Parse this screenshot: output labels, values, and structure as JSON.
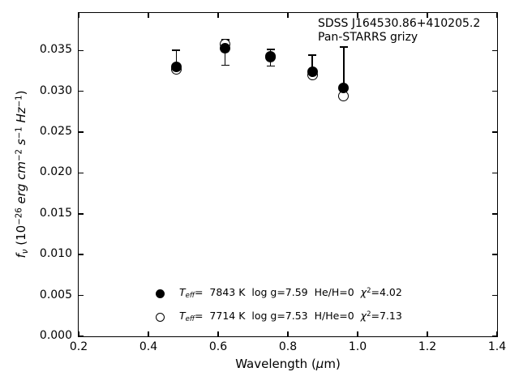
{
  "figure": {
    "background": "#ffffff",
    "foreground": "#000000",
    "xlabel_parts": {
      "pre": "Wavelength (",
      "mu": "μ",
      "post": "m)"
    },
    "ylabel_parts": {
      "f": "f",
      "nu": "ν",
      "p1": " (10",
      "s1": "−26",
      "p2": " erg cm",
      "s2": "−2",
      "p3": " s",
      "s3": "−1",
      "p4": " Hz",
      "s4": "−1",
      "p5": ")"
    }
  },
  "legend": {
    "entries": [
      {
        "marker": "filled-circle",
        "t": "T",
        "tsub": "eff",
        "teq": "=  7843 K  log g=7.59  He/H=0  ",
        "chi": "χ",
        "chisup": "2",
        "chieq": "=4.02"
      },
      {
        "marker": "open-circle",
        "t": "T",
        "tsub": "eff",
        "teq": "=  7714 K  log g=7.53  H/He=0  ",
        "chi": "χ",
        "chisup": "2",
        "chieq": "=7.13"
      }
    ]
  },
  "chart_data": {
    "type": "scatter",
    "title": "",
    "annotations": [
      "SDSS J164530.86+410205.2",
      "Pan-STARRS grizy"
    ],
    "xlabel": "Wavelength (μm)",
    "ylabel": "f_ν (10^−26 erg cm^−2 s^−1 Hz^−1)",
    "xlim": [
      0.2,
      1.4
    ],
    "ylim": [
      0.0,
      0.0396
    ],
    "xticks": [
      0.2,
      0.4,
      0.6,
      0.8,
      1.0,
      1.2,
      1.4
    ],
    "yticks": [
      0.0,
      0.005,
      0.01,
      0.015,
      0.02,
      0.025,
      0.03,
      0.035
    ],
    "grid": false,
    "legend_position": "lower left inside",
    "x": [
      0.48,
      0.62,
      0.75,
      0.87,
      0.96
    ],
    "series": [
      {
        "name": "Teff= 7843 K  log g=7.59  He/H=0  χ²=4.02",
        "marker": "filled-circle",
        "values": [
          0.033,
          0.0353,
          0.0343,
          0.0324,
          0.0304
        ]
      },
      {
        "name": "Teff= 7714 K  log g=7.53  H/He=0  χ²=7.13",
        "marker": "open-circle",
        "values": [
          0.0327,
          0.0358,
          0.0342,
          0.032,
          0.0294
        ]
      }
    ],
    "error_bars": {
      "top": [
        0.035,
        0.0363,
        0.0351,
        0.0344,
        0.0354
      ],
      "bottom": [
        0.033,
        0.0332,
        0.0331,
        0.0318,
        0.0294
      ]
    }
  }
}
